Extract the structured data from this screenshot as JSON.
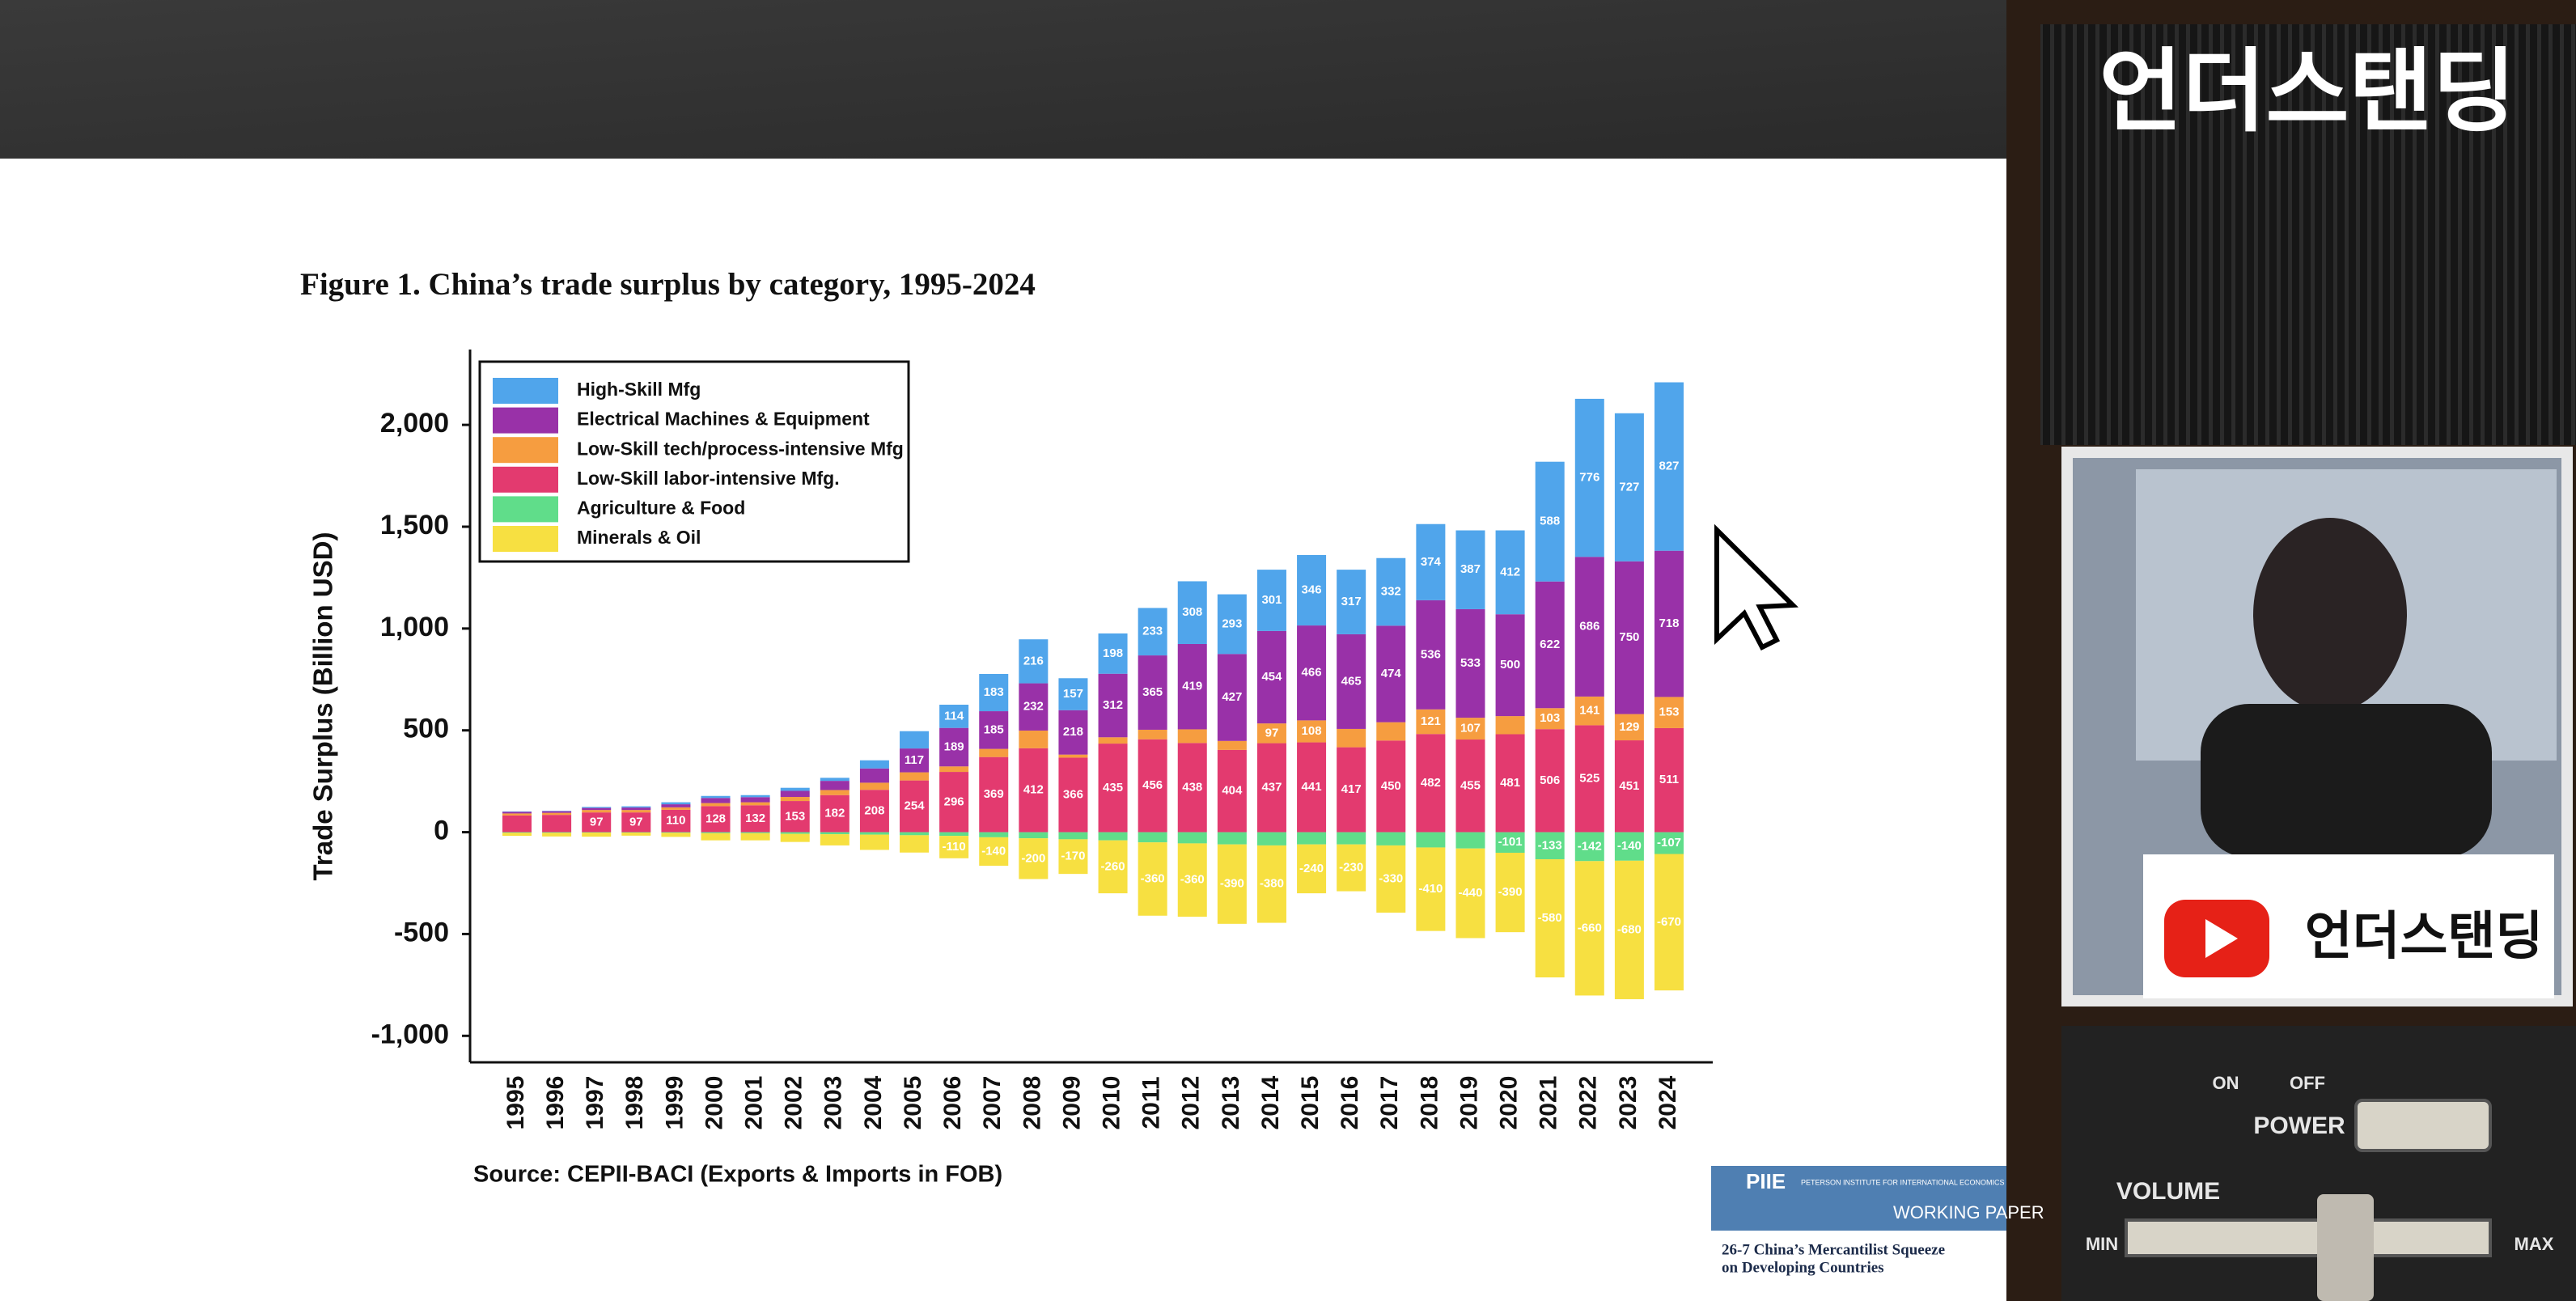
{
  "chart_data": {
    "type": "stacked-bar",
    "title": "Figure 1. China’s trade surplus by category, 1995-2024",
    "y_label": "Trade Surplus (Billion USD)",
    "source": "Source: CEPII-BACI (Exports & Imports in FOB)",
    "categories": [
      "1995",
      "1996",
      "1997",
      "1998",
      "1999",
      "2000",
      "2001",
      "2002",
      "2003",
      "2004",
      "2005",
      "2006",
      "2007",
      "2008",
      "2009",
      "2010",
      "2011",
      "2012",
      "2013",
      "2014",
      "2015",
      "2016",
      "2017",
      "2018",
      "2019",
      "2020",
      "2021",
      "2022",
      "2023",
      "2024"
    ],
    "series": [
      {
        "name": "High-Skill Mfg",
        "color": "#3d9be9",
        "values": [
          2,
          2,
          5,
          6,
          10,
          10,
          10,
          15,
          15,
          40,
          85,
          114,
          183,
          216,
          157,
          198,
          233,
          308,
          293,
          301,
          346,
          317,
          332,
          374,
          387,
          412,
          588,
          776,
          727,
          827
        ]
      },
      {
        "name": "Electrical Machines & Equipment",
        "color": "#8e1b9e",
        "values": [
          8,
          8,
          10,
          12,
          15,
          25,
          25,
          30,
          45,
          70,
          117,
          189,
          185,
          232,
          218,
          312,
          365,
          419,
          427,
          454,
          466,
          465,
          474,
          536,
          533,
          500,
          622,
          686,
          750,
          718
        ]
      },
      {
        "name": "Low-Skill tech/process-intensive Mfg",
        "color": "#f5922b",
        "values": [
          10,
          10,
          12,
          12,
          12,
          15,
          15,
          20,
          25,
          35,
          40,
          27,
          40,
          87,
          15,
          31,
          47,
          67,
          44,
          97,
          108,
          90,
          90,
          121,
          107,
          89,
          103,
          141,
          129,
          153
        ]
      },
      {
        "name": "Low-Skill labor-intensive Mfg.",
        "color": "#e0255f",
        "values": [
          82,
          85,
          97,
          97,
          110,
          128,
          132,
          153,
          182,
          208,
          254,
          296,
          369,
          412,
          366,
          435,
          456,
          438,
          404,
          437,
          441,
          417,
          450,
          482,
          455,
          481,
          506,
          525,
          451,
          511
        ]
      },
      {
        "name": "Agriculture & Food",
        "color": "#4fd97d",
        "values": [
          -3,
          -3,
          -2,
          -2,
          -3,
          -5,
          -5,
          -8,
          -10,
          -12,
          -15,
          -18,
          -25,
          -30,
          -35,
          -40,
          -50,
          -55,
          -60,
          -65,
          -60,
          -60,
          -65,
          -75,
          -80,
          -101,
          -133,
          -142,
          -140,
          -107
        ]
      },
      {
        "name": "Minerals & Oil",
        "color": "#f6dd2c",
        "values": [
          -15,
          -18,
          -20,
          -15,
          -20,
          -35,
          -35,
          -40,
          -55,
          -75,
          -85,
          -110,
          -140,
          -200,
          -170,
          -260,
          -360,
          -360,
          -390,
          -380,
          -240,
          -230,
          -330,
          -410,
          -440,
          -390,
          -580,
          -660,
          -680,
          -670
        ]
      }
    ],
    "ylim": [
      -1130,
      2370
    ],
    "yticks": [
      {
        "value": -1000,
        "label": "-1,000"
      },
      -500,
      0,
      500,
      {
        "value": 1000,
        "label": "1,000"
      },
      {
        "value": 1500,
        "label": "1,500"
      },
      {
        "value": 2000,
        "label": "2,000"
      }
    ],
    "grid": false,
    "legend": "top-left"
  },
  "channel": {
    "logo": "언더스탠딩",
    "banner": "언더스탠딩"
  },
  "controls": {
    "on": "ON",
    "off": "OFF",
    "power": "POWER",
    "volume": "VOLUME",
    "min": "MIN",
    "max": "MAX"
  },
  "paper": {
    "brand": "PIIE",
    "institute": "PETERSON INSTITUTE FOR INTERNATIONAL ECONOMICS",
    "series": "WORKING PAPER",
    "title_line1": "26-7 China’s Mercantilist Squeeze",
    "title_line2": "on Developing Countries"
  }
}
